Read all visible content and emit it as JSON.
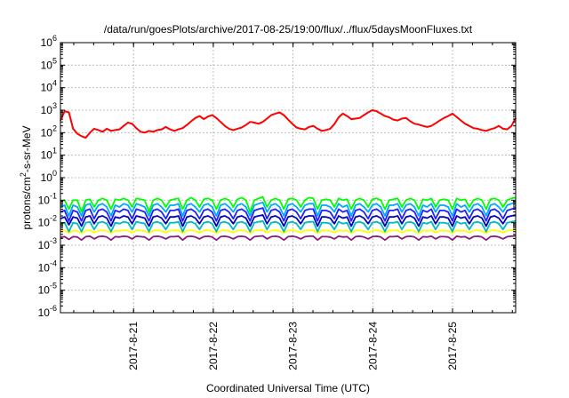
{
  "chart_data": {
    "type": "line",
    "title": "/data/run/goesPlots/archive/2017-08-25/19:00/flux/../flux/5daysMoonFluxes.txt",
    "xlabel": "Coordinated Universal Time (UTC)",
    "ylabel_parts": {
      "pre": "protons/cm",
      "sup": "2",
      "post": "-s-sr-MeV"
    },
    "yscale": "log",
    "ylim_exp": [
      -6,
      6
    ],
    "y_tick_exponents": [
      -6,
      -5,
      -4,
      -3,
      -2,
      -1,
      0,
      1,
      2,
      3,
      4,
      5,
      6
    ],
    "y_tick_base": "10",
    "x_range_days": [
      2017.082,
      2017.0826
    ],
    "x_range": [
      "2017-08-20 02:00",
      "2017-08-25 19:00"
    ],
    "x_ticks": [
      "2017-8-21",
      "2017-8-22",
      "2017-8-23",
      "2017-8-24",
      "2017-8-25"
    ],
    "grid": true,
    "series": [
      {
        "color": "#ff0000",
        "x_start": "2017-08-20 02:00",
        "x_end": "2017-08-25 19:00",
        "values": [
          350,
          900,
          800,
          150,
          90,
          70,
          60,
          100,
          150,
          130,
          110,
          150,
          120,
          130,
          140,
          200,
          280,
          250,
          160,
          110,
          100,
          120,
          110,
          130,
          140,
          180,
          140,
          120,
          140,
          160,
          220,
          320,
          450,
          550,
          400,
          520,
          600,
          450,
          300,
          200,
          150,
          130,
          150,
          170,
          220,
          300,
          280,
          250,
          300,
          420,
          600,
          700,
          800,
          600,
          380,
          250,
          170,
          150,
          140,
          180,
          200,
          150,
          120,
          130,
          150,
          240,
          480,
          700,
          550,
          400,
          420,
          450,
          600,
          800,
          1000,
          900,
          700,
          550,
          480,
          380,
          350,
          420,
          450,
          320,
          250,
          230,
          200,
          180,
          200,
          260,
          350,
          450,
          550,
          700,
          500,
          350,
          250,
          200,
          160,
          150,
          130,
          120,
          140,
          160,
          200,
          150,
          140,
          200,
          450
        ]
      },
      {
        "color": "#00ff00",
        "x_start": "2017-08-20 02:00",
        "x_end": "2017-08-25 19:00",
        "values": [
          0.09,
          0.1,
          0.04,
          0.1,
          0.1,
          0.03,
          0.1,
          0.11,
          0.05,
          0.1,
          0.12,
          0.1,
          0.04,
          0.11,
          0.1,
          0.12,
          0.1,
          0.05,
          0.12,
          0.11,
          0.1,
          0.03,
          0.1,
          0.12,
          0.1,
          0.05,
          0.1,
          0.11,
          0.12,
          0.04,
          0.1,
          0.13,
          0.1,
          0.05,
          0.11,
          0.12,
          0.1,
          0.04,
          0.1,
          0.12,
          0.1,
          0.05,
          0.11,
          0.13,
          0.1,
          0.03,
          0.1,
          0.12,
          0.14,
          0.05,
          0.1,
          0.12,
          0.1,
          0.04,
          0.11,
          0.12,
          0.1,
          0.05,
          0.1,
          0.13,
          0.12,
          0.04,
          0.1,
          0.11,
          0.1,
          0.05,
          0.12,
          0.1,
          0.11,
          0.04,
          0.1,
          0.12,
          0.1,
          0.05,
          0.11,
          0.12,
          0.1,
          0.04,
          0.1,
          0.11,
          0.12,
          0.05,
          0.1,
          0.12,
          0.1,
          0.04,
          0.11,
          0.1,
          0.12,
          0.05,
          0.1,
          0.11,
          0.1,
          0.04,
          0.12,
          0.1,
          0.11,
          0.05,
          0.1,
          0.12,
          0.1,
          0.04,
          0.11,
          0.12,
          0.1,
          0.05,
          0.1,
          0.12,
          0.13
        ]
      },
      {
        "color": "#00aaff",
        "x_start": "2017-08-20 02:00",
        "x_end": "2017-08-25 19:00",
        "values": [
          0.05,
          0.06,
          0.02,
          0.06,
          0.05,
          0.02,
          0.06,
          0.07,
          0.03,
          0.06,
          0.07,
          0.05,
          0.02,
          0.06,
          0.05,
          0.07,
          0.06,
          0.03,
          0.07,
          0.06,
          0.05,
          0.02,
          0.06,
          0.07,
          0.05,
          0.03,
          0.06,
          0.06,
          0.07,
          0.02,
          0.06,
          0.07,
          0.05,
          0.03,
          0.06,
          0.07,
          0.05,
          0.02,
          0.06,
          0.07,
          0.05,
          0.03,
          0.06,
          0.07,
          0.05,
          0.02,
          0.06,
          0.07,
          0.08,
          0.03,
          0.06,
          0.07,
          0.05,
          0.02,
          0.06,
          0.07,
          0.05,
          0.03,
          0.06,
          0.07,
          0.07,
          0.02,
          0.06,
          0.06,
          0.05,
          0.03,
          0.07,
          0.05,
          0.06,
          0.02,
          0.06,
          0.07,
          0.05,
          0.03,
          0.06,
          0.07,
          0.05,
          0.02,
          0.06,
          0.06,
          0.07,
          0.03,
          0.06,
          0.07,
          0.05,
          0.02,
          0.06,
          0.05,
          0.07,
          0.03,
          0.06,
          0.06,
          0.05,
          0.02,
          0.07,
          0.05,
          0.06,
          0.03,
          0.06,
          0.07,
          0.05,
          0.02,
          0.06,
          0.07,
          0.05,
          0.03,
          0.06,
          0.07,
          0.08
        ]
      },
      {
        "color": "#2222ff",
        "x_start": "2017-08-20 02:00",
        "x_end": "2017-08-25 19:00",
        "values": [
          0.03,
          0.035,
          0.012,
          0.035,
          0.03,
          0.012,
          0.035,
          0.04,
          0.015,
          0.035,
          0.04,
          0.03,
          0.012,
          0.035,
          0.03,
          0.04,
          0.035,
          0.015,
          0.04,
          0.035,
          0.03,
          0.012,
          0.035,
          0.04,
          0.03,
          0.015,
          0.035,
          0.035,
          0.04,
          0.012,
          0.035,
          0.04,
          0.03,
          0.015,
          0.035,
          0.04,
          0.03,
          0.012,
          0.035,
          0.04,
          0.03,
          0.015,
          0.035,
          0.04,
          0.03,
          0.012,
          0.035,
          0.04,
          0.045,
          0.015,
          0.035,
          0.04,
          0.03,
          0.012,
          0.035,
          0.04,
          0.03,
          0.015,
          0.035,
          0.04,
          0.04,
          0.012,
          0.035,
          0.035,
          0.03,
          0.015,
          0.04,
          0.03,
          0.035,
          0.012,
          0.035,
          0.04,
          0.03,
          0.015,
          0.035,
          0.04,
          0.03,
          0.012,
          0.035,
          0.035,
          0.04,
          0.015,
          0.035,
          0.04,
          0.03,
          0.012,
          0.035,
          0.03,
          0.04,
          0.015,
          0.035,
          0.035,
          0.03,
          0.012,
          0.04,
          0.03,
          0.035,
          0.015,
          0.035,
          0.04,
          0.03,
          0.012,
          0.035,
          0.04,
          0.03,
          0.015,
          0.035,
          0.04,
          0.045
        ]
      },
      {
        "color": "#0000bb",
        "x_start": "2017-08-20 02:00",
        "x_end": "2017-08-25 19:00",
        "values": [
          0.015,
          0.018,
          0.008,
          0.018,
          0.016,
          0.007,
          0.018,
          0.02,
          0.009,
          0.018,
          0.02,
          0.016,
          0.007,
          0.018,
          0.016,
          0.02,
          0.018,
          0.009,
          0.02,
          0.018,
          0.016,
          0.007,
          0.018,
          0.02,
          0.016,
          0.009,
          0.018,
          0.018,
          0.02,
          0.007,
          0.018,
          0.02,
          0.016,
          0.009,
          0.018,
          0.02,
          0.016,
          0.007,
          0.018,
          0.02,
          0.016,
          0.009,
          0.018,
          0.02,
          0.016,
          0.007,
          0.018,
          0.02,
          0.022,
          0.009,
          0.018,
          0.02,
          0.016,
          0.007,
          0.018,
          0.02,
          0.016,
          0.009,
          0.018,
          0.02,
          0.02,
          0.007,
          0.018,
          0.018,
          0.016,
          0.009,
          0.02,
          0.016,
          0.018,
          0.007,
          0.018,
          0.02,
          0.016,
          0.009,
          0.018,
          0.02,
          0.016,
          0.007,
          0.018,
          0.018,
          0.02,
          0.009,
          0.018,
          0.02,
          0.016,
          0.007,
          0.018,
          0.016,
          0.02,
          0.009,
          0.018,
          0.018,
          0.016,
          0.007,
          0.02,
          0.016,
          0.018,
          0.009,
          0.018,
          0.02,
          0.016,
          0.007,
          0.018,
          0.02,
          0.016,
          0.009,
          0.018,
          0.02,
          0.022
        ]
      },
      {
        "color": "#00bbbb",
        "x_start": "2017-08-20 02:00",
        "x_end": "2017-08-25 19:00",
        "values": [
          0.009,
          0.01,
          0.004,
          0.01,
          0.009,
          0.004,
          0.01,
          0.011,
          0.005,
          0.01,
          0.011,
          0.009,
          0.004,
          0.01,
          0.009,
          0.011,
          0.01,
          0.005,
          0.011,
          0.01,
          0.009,
          0.004,
          0.01,
          0.011,
          0.009,
          0.005,
          0.01,
          0.01,
          0.011,
          0.004,
          0.01,
          0.011,
          0.009,
          0.005,
          0.01,
          0.011,
          0.009,
          0.004,
          0.01,
          0.011,
          0.009,
          0.005,
          0.01,
          0.011,
          0.009,
          0.004,
          0.01,
          0.011,
          0.012,
          0.005,
          0.01,
          0.011,
          0.009,
          0.004,
          0.01,
          0.011,
          0.009,
          0.005,
          0.01,
          0.011,
          0.011,
          0.004,
          0.01,
          0.01,
          0.009,
          0.005,
          0.011,
          0.009,
          0.01,
          0.004,
          0.01,
          0.011,
          0.009,
          0.005,
          0.01,
          0.011,
          0.009,
          0.004,
          0.01,
          0.01,
          0.011,
          0.005,
          0.01,
          0.011,
          0.009,
          0.004,
          0.01,
          0.009,
          0.011,
          0.005,
          0.01,
          0.01,
          0.009,
          0.004,
          0.011,
          0.009,
          0.01,
          0.005,
          0.01,
          0.011,
          0.009,
          0.004,
          0.01,
          0.011,
          0.009,
          0.005,
          0.01,
          0.011,
          0.012
        ]
      },
      {
        "color": "#ffff00",
        "x_start": "2017-08-20 02:00",
        "x_end": "2017-08-25 19:00",
        "values": [
          0.0042,
          0.0045,
          0.0035,
          0.0045,
          0.0043,
          0.0034,
          0.0045,
          0.0046,
          0.0036,
          0.0045,
          0.0046,
          0.0043,
          0.0034,
          0.0045,
          0.0043,
          0.0046,
          0.0045,
          0.0036,
          0.0046,
          0.0045,
          0.0043,
          0.0034,
          0.0045,
          0.0046,
          0.0043,
          0.0036,
          0.0045,
          0.0045,
          0.0046,
          0.0034,
          0.0045,
          0.0046,
          0.0043,
          0.0036,
          0.0045,
          0.0046,
          0.0043,
          0.0034,
          0.0045,
          0.0046,
          0.0043,
          0.0036,
          0.0045,
          0.0046,
          0.0043,
          0.0034,
          0.0045,
          0.0046,
          0.0047,
          0.0036,
          0.0045,
          0.0046,
          0.0043,
          0.0034,
          0.0045,
          0.0046,
          0.0043,
          0.0036,
          0.0045,
          0.0046,
          0.0046,
          0.0034,
          0.0045,
          0.0045,
          0.0043,
          0.0036,
          0.0046,
          0.0043,
          0.0045,
          0.0034,
          0.0045,
          0.0046,
          0.0043,
          0.0036,
          0.0045,
          0.0046,
          0.0043,
          0.0034,
          0.0045,
          0.0045,
          0.0046,
          0.0036,
          0.0045,
          0.0046,
          0.0043,
          0.0034,
          0.0045,
          0.0043,
          0.0046,
          0.0036,
          0.0045,
          0.0045,
          0.0043,
          0.0034,
          0.0046,
          0.0043,
          0.0045,
          0.0036,
          0.0045,
          0.0046,
          0.0043,
          0.0034,
          0.0045,
          0.0046,
          0.0043,
          0.0036,
          0.0045,
          0.0046,
          0.0047
        ]
      },
      {
        "color": "#8b1a7a",
        "x_start": "2017-08-20 02:00",
        "x_end": "2017-08-25 19:00",
        "values": [
          0.0022,
          0.0024,
          0.0018,
          0.0024,
          0.0023,
          0.0017,
          0.0024,
          0.0025,
          0.0019,
          0.0024,
          0.0025,
          0.0023,
          0.0017,
          0.0024,
          0.0023,
          0.0025,
          0.0024,
          0.0019,
          0.0025,
          0.0024,
          0.0023,
          0.0017,
          0.0024,
          0.0025,
          0.0023,
          0.0019,
          0.0024,
          0.0024,
          0.0025,
          0.0017,
          0.0024,
          0.0025,
          0.0023,
          0.0019,
          0.0024,
          0.0025,
          0.0023,
          0.0017,
          0.0024,
          0.0025,
          0.0023,
          0.0019,
          0.0024,
          0.0025,
          0.0023,
          0.0017,
          0.0024,
          0.0025,
          0.0026,
          0.0019,
          0.0024,
          0.0025,
          0.0023,
          0.0017,
          0.0024,
          0.0025,
          0.0023,
          0.0019,
          0.0024,
          0.0025,
          0.0025,
          0.0017,
          0.0024,
          0.0024,
          0.0023,
          0.0019,
          0.0025,
          0.0023,
          0.0024,
          0.0017,
          0.0024,
          0.0025,
          0.0023,
          0.0019,
          0.0024,
          0.0025,
          0.0023,
          0.0017,
          0.0024,
          0.0024,
          0.0025,
          0.0019,
          0.0024,
          0.0025,
          0.0023,
          0.0017,
          0.0024,
          0.0023,
          0.0025,
          0.0019,
          0.0024,
          0.0024,
          0.0023,
          0.0017,
          0.0025,
          0.0023,
          0.0024,
          0.0019,
          0.0024,
          0.0025,
          0.0023,
          0.0017,
          0.0024,
          0.0025,
          0.0023,
          0.0019,
          0.0024,
          0.0025,
          0.0026
        ]
      }
    ]
  }
}
